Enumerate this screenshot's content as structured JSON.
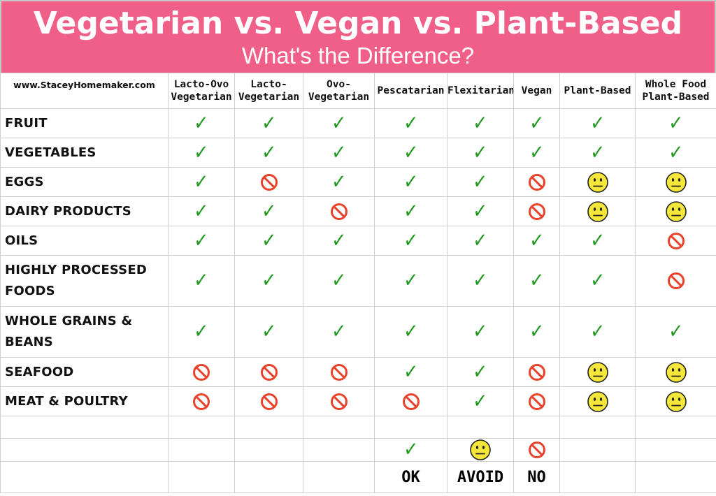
{
  "header": {
    "title": "Vegetarian vs. Vegan vs. Plant-Based",
    "subtitle": "What's the Difference?"
  },
  "site": "www.StaceyHomemaker.com",
  "columns": [
    [
      "Lacto-Ovo",
      "Vegetarian"
    ],
    [
      "Lacto-",
      "Vegetarian"
    ],
    [
      "Ovo-",
      "Vegetarian"
    ],
    [
      "Pescatarian"
    ],
    [
      "Flexitarian"
    ],
    [
      "Vegan"
    ],
    [
      "Plant-Based"
    ],
    [
      "Whole Food",
      "Plant-Based"
    ]
  ],
  "rows": [
    {
      "label": [
        "Fruit"
      ],
      "values": [
        "ok",
        "ok",
        "ok",
        "ok",
        "ok",
        "ok",
        "ok",
        "ok"
      ]
    },
    {
      "label": [
        "Vegetables"
      ],
      "values": [
        "ok",
        "ok",
        "ok",
        "ok",
        "ok",
        "ok",
        "ok",
        "ok"
      ]
    },
    {
      "label": [
        "Eggs"
      ],
      "values": [
        "ok",
        "no",
        "ok",
        "ok",
        "ok",
        "no",
        "avoid",
        "avoid"
      ]
    },
    {
      "label": [
        "Dairy Products"
      ],
      "values": [
        "ok",
        "ok",
        "no",
        "ok",
        "ok",
        "no",
        "avoid",
        "avoid"
      ]
    },
    {
      "label": [
        "Oils"
      ],
      "values": [
        "ok",
        "ok",
        "ok",
        "ok",
        "ok",
        "ok",
        "ok",
        "no"
      ]
    },
    {
      "label": [
        "Highly Processed",
        "Foods"
      ],
      "values": [
        "ok",
        "ok",
        "ok",
        "ok",
        "ok",
        "ok",
        "ok",
        "no"
      ]
    },
    {
      "label": [
        "Whole Grains &",
        "Beans"
      ],
      "values": [
        "ok",
        "ok",
        "ok",
        "ok",
        "ok",
        "ok",
        "ok",
        "ok"
      ]
    },
    {
      "label": [
        "Seafood"
      ],
      "values": [
        "no",
        "no",
        "no",
        "ok",
        "ok",
        "no",
        "avoid",
        "avoid"
      ]
    },
    {
      "label": [
        "Meat & Poultry"
      ],
      "values": [
        "no",
        "no",
        "no",
        "no",
        "ok",
        "no",
        "avoid",
        "avoid"
      ]
    }
  ],
  "legend": {
    "ok": "OK",
    "avoid": "AVOID",
    "no": "NO"
  },
  "icons": {
    "ok": "check-icon",
    "no": "prohibited-icon",
    "avoid": "neutral-face-icon"
  },
  "colors": {
    "header_bg": "#f05f88",
    "check": "#1f9a1f",
    "no": "#e8432a",
    "avoid": "#f5e63a"
  }
}
